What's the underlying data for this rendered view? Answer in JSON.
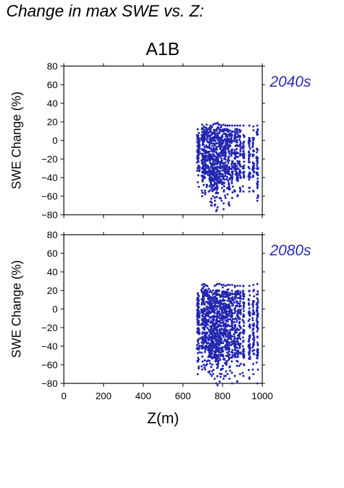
{
  "page": {
    "title": "Change in max SWE vs. Z:",
    "scenario": "A1B"
  },
  "colors": {
    "points": "#2226b0",
    "label": "#2a2ab4",
    "axis": "#000000"
  },
  "chart_data": [
    {
      "type": "scatter",
      "period_label": "2040s",
      "xlabel": "",
      "ylabel": "SWE Change (%)",
      "xlim": [
        0,
        1000
      ],
      "ylim": [
        -80,
        80
      ],
      "xticks": [
        0,
        200,
        400,
        600,
        800,
        1000
      ],
      "yticks": [
        -80,
        -60,
        -40,
        -20,
        0,
        20,
        40,
        60,
        80
      ],
      "grid": false,
      "columns": [
        {
          "x": 675,
          "ymin": -45,
          "ymax": 12
        },
        {
          "x": 680,
          "ymin": -50,
          "ymax": 8
        },
        {
          "x": 697,
          "ymin": -60,
          "ymax": 17
        },
        {
          "x": 705,
          "ymin": -48,
          "ymax": 15
        },
        {
          "x": 712,
          "ymin": -58,
          "ymax": 14
        },
        {
          "x": 720,
          "ymin": -50,
          "ymax": 17
        },
        {
          "x": 730,
          "ymin": -55,
          "ymax": 12
        },
        {
          "x": 738,
          "ymin": -66,
          "ymax": 16
        },
        {
          "x": 745,
          "ymin": -70,
          "ymax": 15
        },
        {
          "x": 752,
          "ymin": -60,
          "ymax": 17
        },
        {
          "x": 760,
          "ymin": -70,
          "ymax": 18
        },
        {
          "x": 768,
          "ymin": -76,
          "ymax": 18
        },
        {
          "x": 775,
          "ymin": -72,
          "ymax": 19
        },
        {
          "x": 785,
          "ymin": -62,
          "ymax": 17
        },
        {
          "x": 795,
          "ymin": -65,
          "ymax": 16
        },
        {
          "x": 805,
          "ymin": -74,
          "ymax": 17
        },
        {
          "x": 815,
          "ymin": -62,
          "ymax": 16
        },
        {
          "x": 825,
          "ymin": -58,
          "ymax": 16
        },
        {
          "x": 835,
          "ymin": -70,
          "ymax": 16
        },
        {
          "x": 848,
          "ymin": -62,
          "ymax": 16
        },
        {
          "x": 862,
          "ymin": -55,
          "ymax": 16
        },
        {
          "x": 875,
          "ymin": -60,
          "ymax": 16
        },
        {
          "x": 888,
          "ymin": -55,
          "ymax": 16
        },
        {
          "x": 905,
          "ymin": -55,
          "ymax": 16
        },
        {
          "x": 935,
          "ymin": -55,
          "ymax": 16
        },
        {
          "x": 955,
          "ymin": -55,
          "ymax": 15
        },
        {
          "x": 975,
          "ymin": -65,
          "ymax": 16
        }
      ]
    },
    {
      "type": "scatter",
      "period_label": "2080s",
      "xlabel": "Z(m)",
      "ylabel": "SWE Change (%)",
      "xlim": [
        0,
        1000
      ],
      "ylim": [
        -80,
        80
      ],
      "xticks": [
        0,
        200,
        400,
        600,
        800,
        1000
      ],
      "yticks": [
        -80,
        -60,
        -40,
        -20,
        0,
        20,
        40,
        60,
        80
      ],
      "grid": false,
      "columns": [
        {
          "x": 675,
          "ymin": -70,
          "ymax": 17
        },
        {
          "x": 680,
          "ymin": -62,
          "ymax": 14
        },
        {
          "x": 697,
          "ymin": -65,
          "ymax": 26
        },
        {
          "x": 705,
          "ymin": -60,
          "ymax": 27
        },
        {
          "x": 712,
          "ymin": -65,
          "ymax": 26
        },
        {
          "x": 720,
          "ymin": -60,
          "ymax": 25
        },
        {
          "x": 730,
          "ymin": -68,
          "ymax": 22
        },
        {
          "x": 738,
          "ymin": -70,
          "ymax": 20
        },
        {
          "x": 745,
          "ymin": -72,
          "ymax": 18
        },
        {
          "x": 752,
          "ymin": -70,
          "ymax": 20
        },
        {
          "x": 760,
          "ymin": -75,
          "ymax": 25
        },
        {
          "x": 768,
          "ymin": -80,
          "ymax": 26
        },
        {
          "x": 775,
          "ymin": -82,
          "ymax": 27
        },
        {
          "x": 785,
          "ymin": -78,
          "ymax": 27
        },
        {
          "x": 795,
          "ymin": -70,
          "ymax": 26
        },
        {
          "x": 805,
          "ymin": -75,
          "ymax": 26
        },
        {
          "x": 815,
          "ymin": -72,
          "ymax": 25
        },
        {
          "x": 825,
          "ymin": -70,
          "ymax": 26
        },
        {
          "x": 835,
          "ymin": -75,
          "ymax": 26
        },
        {
          "x": 848,
          "ymin": -80,
          "ymax": 26
        },
        {
          "x": 862,
          "ymin": -72,
          "ymax": 25
        },
        {
          "x": 875,
          "ymin": -78,
          "ymax": 25
        },
        {
          "x": 888,
          "ymin": -70,
          "ymax": 25
        },
        {
          "x": 905,
          "ymin": -72,
          "ymax": 25
        },
        {
          "x": 935,
          "ymin": -75,
          "ymax": 25
        },
        {
          "x": 955,
          "ymin": -70,
          "ymax": 26
        },
        {
          "x": 975,
          "ymin": -80,
          "ymax": 27
        }
      ]
    }
  ]
}
